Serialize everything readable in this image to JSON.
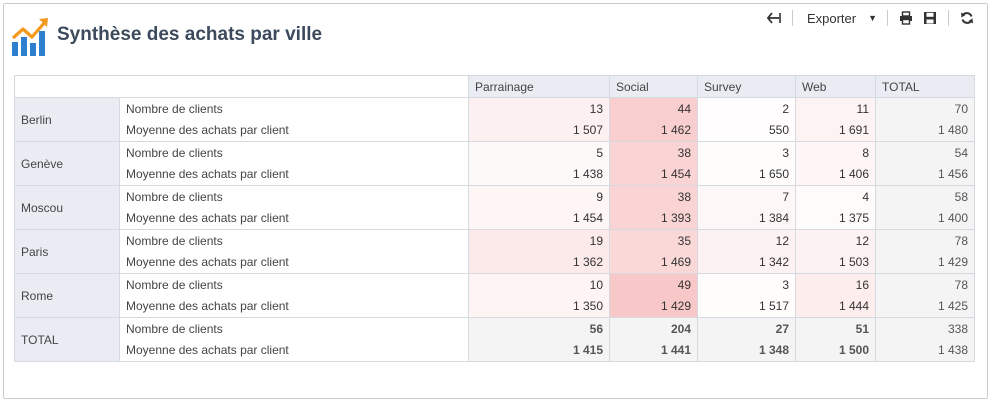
{
  "header": {
    "title": "Synthèse des achats par ville",
    "logo_icon": "trend-chart-icon"
  },
  "toolbar": {
    "back_icon": "back-arrow-icon",
    "export_label": "Exporter",
    "print_icon": "print-icon",
    "save_icon": "save-icon",
    "refresh_icon": "refresh-icon"
  },
  "table": {
    "columns": [
      "Parrainage",
      "Social",
      "Survey",
      "Web",
      "TOTAL"
    ],
    "measures": [
      "Nombre de clients",
      "Moyenne des achats par client"
    ],
    "rows": [
      {
        "city": "Berlin",
        "clients": [
          "13",
          "44",
          "2",
          "11",
          "70"
        ],
        "moyenne": [
          "1 507",
          "1 462",
          "550",
          "1 691",
          "1 480"
        ]
      },
      {
        "city": "Genève",
        "clients": [
          "5",
          "38",
          "3",
          "8",
          "54"
        ],
        "moyenne": [
          "1 438",
          "1 454",
          "1 650",
          "1 406",
          "1 456"
        ]
      },
      {
        "city": "Moscou",
        "clients": [
          "9",
          "38",
          "7",
          "4",
          "58"
        ],
        "moyenne": [
          "1 454",
          "1 393",
          "1 384",
          "1 375",
          "1 400"
        ]
      },
      {
        "city": "Paris",
        "clients": [
          "19",
          "35",
          "12",
          "12",
          "78"
        ],
        "moyenne": [
          "1 362",
          "1 469",
          "1 342",
          "1 503",
          "1 429"
        ]
      },
      {
        "city": "Rome",
        "clients": [
          "10",
          "49",
          "3",
          "16",
          "78"
        ],
        "moyenne": [
          "1 350",
          "1 429",
          "1 517",
          "1 444",
          "1 425"
        ]
      },
      {
        "city": "TOTAL",
        "clients": [
          "56",
          "204",
          "27",
          "51",
          "338"
        ],
        "moyenne": [
          "1 415",
          "1 441",
          "1 348",
          "1 500",
          "1 438"
        ]
      }
    ]
  },
  "colors": {
    "heat_base": "#ffffff",
    "heat_max": "#f8c8c8",
    "header_bg": "#e9ecf3",
    "total_bg": "#f4f4f4",
    "title": "#3c4a5c",
    "logo_orange": "#f39a1e",
    "logo_blue": "#2f7fd0"
  }
}
